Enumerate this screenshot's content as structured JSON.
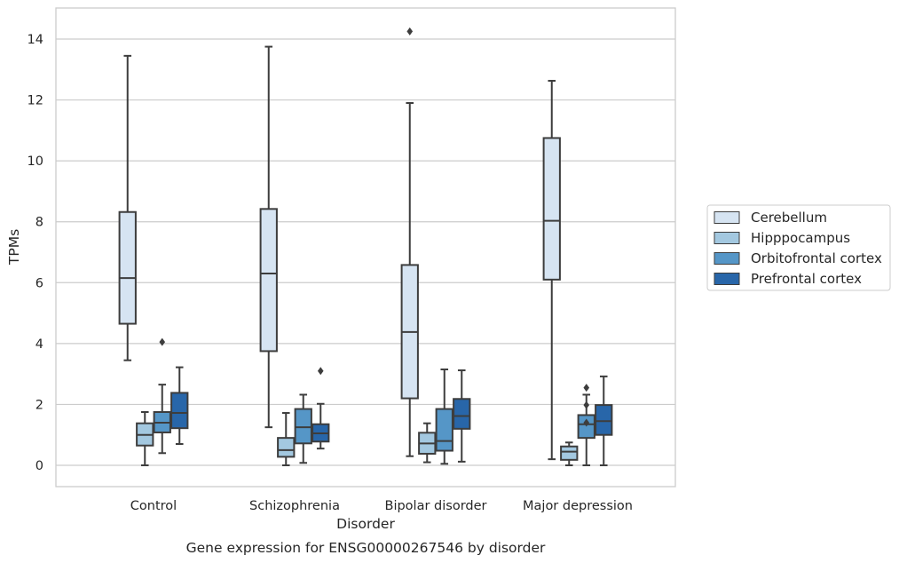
{
  "chart_data": {
    "type": "box",
    "title": "Gene expression for ENSG00000267546 by disorder",
    "xlabel": "Disorder",
    "ylabel": "TPMs",
    "ylim": [
      -0.7,
      15
    ],
    "yticks": [
      0,
      2,
      4,
      6,
      8,
      10,
      12,
      14
    ],
    "grid": true,
    "legend_position": "right",
    "categories": [
      "Control",
      "Schizophrenia",
      "Bipolar disorder",
      "Major depression"
    ],
    "series": [
      {
        "name": "Cerebellum",
        "color": "#d6e4f2",
        "boxes": [
          {
            "whisker_low": 3.45,
            "q1": 4.65,
            "median": 6.15,
            "q3": 8.32,
            "whisker_high": 13.45,
            "outliers": []
          },
          {
            "whisker_low": 1.25,
            "q1": 3.75,
            "median": 6.3,
            "q3": 8.42,
            "whisker_high": 13.75,
            "outliers": []
          },
          {
            "whisker_low": 0.3,
            "q1": 2.2,
            "median": 4.38,
            "q3": 6.58,
            "whisker_high": 11.9,
            "outliers": [
              14.25
            ]
          },
          {
            "whisker_low": 0.2,
            "q1": 6.1,
            "median": 8.03,
            "q3": 10.75,
            "whisker_high": 12.63,
            "outliers": []
          }
        ]
      },
      {
        "name": "Hipppocampus",
        "color": "#a3c8e0",
        "boxes": [
          {
            "whisker_low": 0.0,
            "q1": 0.65,
            "median": 1.0,
            "q3": 1.38,
            "whisker_high": 1.75,
            "outliers": []
          },
          {
            "whisker_low": 0.0,
            "q1": 0.28,
            "median": 0.5,
            "q3": 0.9,
            "whisker_high": 1.72,
            "outliers": []
          },
          {
            "whisker_low": 0.1,
            "q1": 0.38,
            "median": 0.72,
            "q3": 1.07,
            "whisker_high": 1.38,
            "outliers": []
          },
          {
            "whisker_low": 0.0,
            "q1": 0.18,
            "median": 0.45,
            "q3": 0.62,
            "whisker_high": 0.75,
            "outliers": []
          }
        ]
      },
      {
        "name": "Orbitofrontal cortex",
        "color": "#5596c7",
        "boxes": [
          {
            "whisker_low": 0.4,
            "q1": 1.08,
            "median": 1.4,
            "q3": 1.75,
            "whisker_high": 2.65,
            "outliers": [
              4.05
            ]
          },
          {
            "whisker_low": 0.08,
            "q1": 0.72,
            "median": 1.25,
            "q3": 1.85,
            "whisker_high": 2.32,
            "outliers": []
          },
          {
            "whisker_low": 0.05,
            "q1": 0.48,
            "median": 0.8,
            "q3": 1.85,
            "whisker_high": 3.15,
            "outliers": []
          },
          {
            "whisker_low": 0.0,
            "q1": 0.9,
            "median": 1.35,
            "q3": 1.65,
            "whisker_high": 2.32,
            "outliers": [
              2.55,
              1.98,
              1.4
            ]
          }
        ]
      },
      {
        "name": "Prefrontal cortex",
        "color": "#2866a9",
        "boxes": [
          {
            "whisker_low": 0.7,
            "q1": 1.22,
            "median": 1.72,
            "q3": 2.38,
            "whisker_high": 3.22,
            "outliers": []
          },
          {
            "whisker_low": 0.55,
            "q1": 0.78,
            "median": 1.05,
            "q3": 1.35,
            "whisker_high": 2.02,
            "outliers": [
              3.1
            ]
          },
          {
            "whisker_low": 0.12,
            "q1": 1.2,
            "median": 1.62,
            "q3": 2.18,
            "whisker_high": 3.12,
            "outliers": []
          },
          {
            "whisker_low": 0.0,
            "q1": 1.0,
            "median": 1.45,
            "q3": 1.98,
            "whisker_high": 2.92,
            "outliers": []
          }
        ]
      }
    ]
  }
}
